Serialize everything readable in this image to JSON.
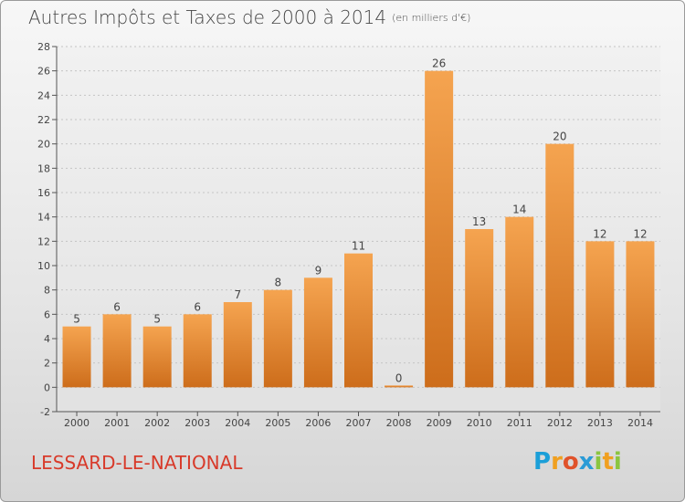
{
  "title": "Autres Impôts et Taxes de 2000 à 2014",
  "subtitle": "(en milliers d'€)",
  "place": "LESSARD-LE-NATIONAL",
  "logo": "Proxiti",
  "colors": {
    "bar_light": "#f5a450",
    "bar_dark": "#cd6d1b",
    "text": "#444444",
    "place": "#d83a2a"
  },
  "chart_data": {
    "type": "bar",
    "categories": [
      "2000",
      "2001",
      "2002",
      "2003",
      "2004",
      "2005",
      "2006",
      "2007",
      "2008",
      "2009",
      "2010",
      "2011",
      "2012",
      "2013",
      "2014"
    ],
    "values": [
      5,
      6,
      5,
      6,
      7,
      8,
      9,
      11,
      0,
      26,
      13,
      14,
      20,
      12,
      12
    ],
    "ylim": [
      -2,
      28
    ],
    "yticks": [
      -2,
      0,
      2,
      4,
      6,
      8,
      10,
      12,
      14,
      16,
      18,
      20,
      22,
      24,
      26,
      28
    ],
    "grid": true,
    "title": "Autres Impôts et Taxes de 2000 à 2014",
    "xlabel": "",
    "ylabel": ""
  }
}
